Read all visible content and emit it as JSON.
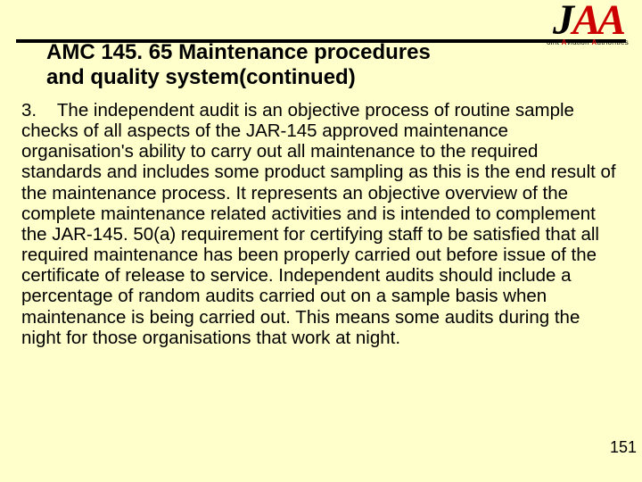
{
  "logo": {
    "j": "J",
    "aa": "AA",
    "tagline_parts": {
      "o": "oint ",
      "a1": "A",
      "viation": "viation ",
      "a2": "A",
      "uth": "uthorities"
    }
  },
  "title": "AMC 145. 65 Maintenance procedures and quality system(continued)",
  "paragraph_number": "3.",
  "body": "The independent audit is an objective process of routine sample checks of all aspects of the JAR-145 approved maintenance organisation's ability to carry out all maintenance to the required standards and includes some product sampling as this is the end result of the maintenance process. It represents an objective overview of the complete maintenance related activities and is intended to complement the JAR-145. 50(a) requirement for certifying staff to be satisfied that all required maintenance has been properly carried out before issue of the certificate of release to service. Independent audits should include a percentage of random audits carried out on a sample basis when maintenance is being carried out. This means some audits during the night for those organisations that work at night.",
  "page_number": "151",
  "colors": {
    "background": "#ffffcc",
    "logo_red": "#cc0000",
    "text": "#000000"
  }
}
